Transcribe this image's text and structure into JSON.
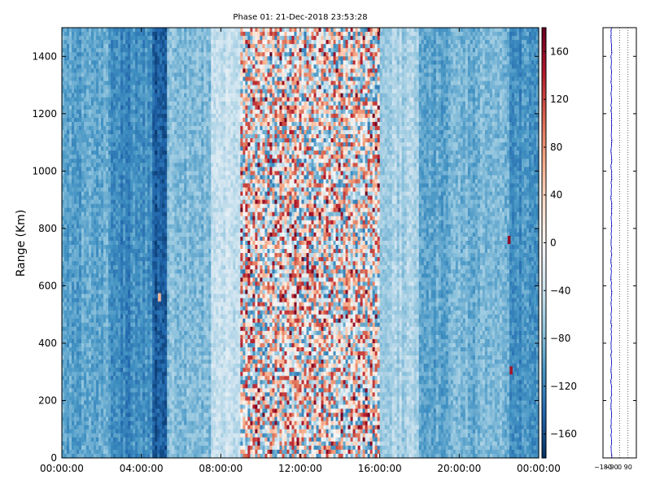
{
  "chart_data": [
    {
      "type": "heatmap",
      "title": "Phase 01: 21-Dec-2018 23:53:28",
      "xlabel": "",
      "ylabel": "Range (Km)",
      "x_ticks": [
        "00:00:00",
        "04:00:00",
        "08:00:00",
        "12:00:00",
        "16:00:00",
        "20:00:00",
        "00:00:00"
      ],
      "x_range_hours": [
        0,
        24
      ],
      "y_ticks": [
        0,
        200,
        400,
        600,
        800,
        1000,
        1200,
        1400
      ],
      "ylim": [
        0,
        1500
      ],
      "colorbar": {
        "colormap": "RdBu_r",
        "range": [
          -180,
          180
        ],
        "ticks": [
          -160,
          -120,
          -80,
          -40,
          0,
          40,
          80,
          120,
          160
        ]
      },
      "column_mean_profile": [
        {
          "hour_from": 0.0,
          "hour_to": 2.5,
          "phase": -95
        },
        {
          "hour_from": 2.5,
          "hour_to": 3.5,
          "phase": -120
        },
        {
          "hour_from": 3.5,
          "hour_to": 4.5,
          "phase": -110
        },
        {
          "hour_from": 4.5,
          "hour_to": 5.3,
          "phase": -150
        },
        {
          "hour_from": 5.3,
          "hour_to": 7.5,
          "phase": -80
        },
        {
          "hour_from": 7.5,
          "hour_to": 9.0,
          "phase": -40
        },
        {
          "hour_from": 9.0,
          "hour_to": 16.0,
          "phase": 5
        },
        {
          "hour_from": 16.0,
          "hour_to": 18.0,
          "phase": -60
        },
        {
          "hour_from": 18.0,
          "hour_to": 19.5,
          "phase": -95
        },
        {
          "hour_from": 19.5,
          "hour_to": 22.5,
          "phase": -85
        },
        {
          "hour_from": 22.5,
          "hour_to": 24.0,
          "phase": -110
        }
      ],
      "annotations": [
        {
          "hour": 4.9,
          "range_km": 560,
          "phase": 60
        },
        {
          "hour": 22.5,
          "range_km": 760,
          "phase": 160
        },
        {
          "hour": 22.6,
          "range_km": 305,
          "phase": 150
        }
      ]
    },
    {
      "type": "line",
      "x_ticks": [
        "-180",
        "-90",
        "0",
        "90"
      ],
      "xlim": [
        -180,
        180
      ],
      "ylim": [
        0,
        1500
      ],
      "grid": true,
      "series_color": "#0000cc",
      "mean_phase": -90
    }
  ]
}
